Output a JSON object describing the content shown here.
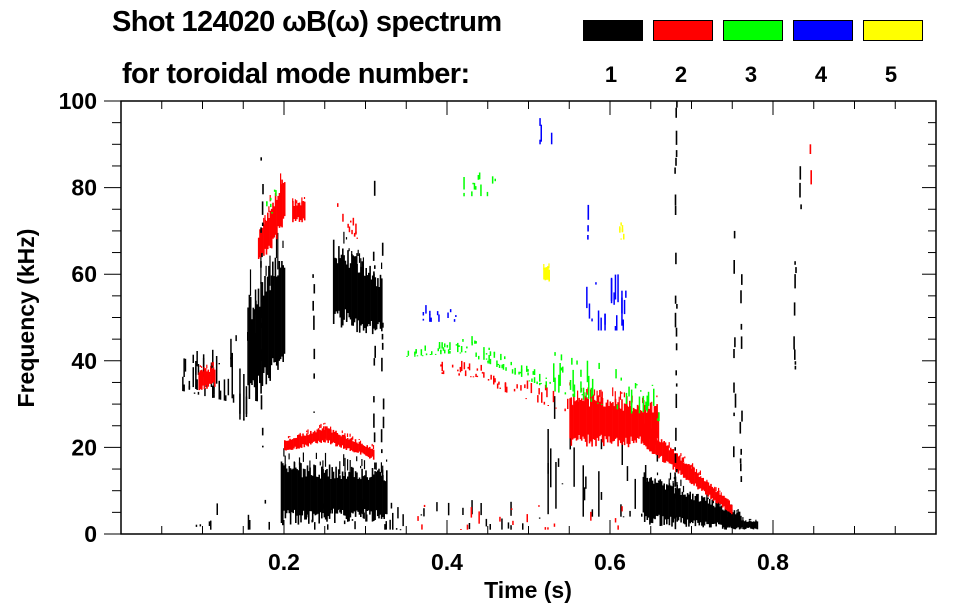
{
  "chart_data": {
    "type": "heatmap",
    "title_line1": "Shot 124020 ωB(ω) spectrum",
    "title_line2": "for toroidal mode number:",
    "xlabel": "Time (s)",
    "ylabel": "Frequency (kHz)",
    "xlim": [
      0,
      1.0
    ],
    "ylim": [
      0,
      100
    ],
    "xticks": [
      {
        "v": 0.2,
        "label": "0.2"
      },
      {
        "v": 0.4,
        "label": "0.4"
      },
      {
        "v": 0.6,
        "label": "0.6"
      },
      {
        "v": 0.8,
        "label": "0.8"
      }
    ],
    "yticks": [
      {
        "v": 0,
        "label": "0"
      },
      {
        "v": 20,
        "label": "20"
      },
      {
        "v": 40,
        "label": "40"
      },
      {
        "v": 60,
        "label": "60"
      },
      {
        "v": 80,
        "label": "80"
      },
      {
        "v": 100,
        "label": "100"
      }
    ],
    "legend": {
      "placement": "top-right",
      "entries": [
        {
          "mode": "1",
          "color": "#000000"
        },
        {
          "mode": "2",
          "color": "#ff0000"
        },
        {
          "mode": "3",
          "color": "#00ff00"
        },
        {
          "mode": "4",
          "color": "#0000ff"
        },
        {
          "mode": "5",
          "color": "#ffff00"
        }
      ]
    },
    "regions": [
      {
        "mode": 1,
        "t": [
          0.075,
          0.145
        ],
        "lo": [
          33,
          30
        ],
        "hi": [
          42,
          48
        ],
        "density": 0.7
      },
      {
        "mode": 1,
        "t": [
          0.145,
          0.165
        ],
        "lo": [
          25,
          30
        ],
        "hi": [
          50,
          58
        ],
        "density": 0.55
      },
      {
        "mode": 1,
        "t": [
          0.155,
          0.2
        ],
        "lo": [
          28,
          38
        ],
        "hi": [
          55,
          68
        ],
        "density": 0.85
      },
      {
        "mode": 1,
        "t": [
          0.26,
          0.32
        ],
        "lo": [
          48,
          45
        ],
        "hi": [
          68,
          60
        ],
        "density": 0.75
      },
      {
        "mode": 1,
        "t": [
          0.196,
          0.326
        ],
        "lo": [
          2,
          3
        ],
        "hi": [
          17,
          15
        ],
        "density": 0.95
      },
      {
        "mode": 1,
        "t": [
          0.52,
          0.66
        ],
        "lo": [
          4,
          4
        ],
        "hi": [
          34,
          25
        ],
        "density": 0.3
      },
      {
        "mode": 1,
        "t": [
          0.64,
          0.76
        ],
        "lo": [
          2,
          1
        ],
        "hi": [
          15,
          5
        ],
        "density": 0.85
      },
      {
        "mode": 1,
        "t": [
          0.74,
          0.78
        ],
        "lo": [
          1,
          1
        ],
        "hi": [
          4,
          3
        ],
        "density": 0.9
      },
      {
        "mode": 1,
        "t": [
          0.09,
          0.52
        ],
        "lo": [
          1,
          1
        ],
        "hi": [
          8,
          8
        ],
        "density": 0.12
      },
      {
        "mode": 2,
        "t": [
          0.095,
          0.115
        ],
        "lo": [
          33,
          34
        ],
        "hi": [
          38,
          39
        ],
        "density": 0.8
      },
      {
        "mode": 2,
        "t": [
          0.168,
          0.2
        ],
        "lo": [
          62,
          70
        ],
        "hi": [
          70,
          84
        ],
        "density": 0.75
      },
      {
        "mode": 2,
        "t": [
          0.21,
          0.225
        ],
        "lo": [
          72,
          72
        ],
        "hi": [
          77,
          77
        ],
        "density": 0.8
      },
      {
        "mode": 2,
        "t": [
          0.265,
          0.29
        ],
        "lo": [
          72,
          68
        ],
        "hi": [
          77,
          72
        ],
        "density": 0.6
      },
      {
        "mode": 2,
        "t": [
          0.2,
          0.25
        ],
        "lo": [
          19,
          21
        ],
        "hi": [
          22,
          25
        ],
        "density": 0.9
      },
      {
        "mode": 2,
        "t": [
          0.25,
          0.31
        ],
        "lo": [
          21,
          17
        ],
        "hi": [
          25,
          20
        ],
        "density": 0.8
      },
      {
        "mode": 2,
        "t": [
          0.39,
          0.45
        ],
        "lo": [
          37,
          36
        ],
        "hi": [
          41,
          39
        ],
        "density": 0.55
      },
      {
        "mode": 2,
        "t": [
          0.45,
          0.55
        ],
        "lo": [
          34,
          28
        ],
        "hi": [
          38,
          33
        ],
        "density": 0.35
      },
      {
        "mode": 2,
        "t": [
          0.55,
          0.66
        ],
        "lo": [
          20,
          20
        ],
        "hi": [
          33,
          30
        ],
        "density": 0.75
      },
      {
        "mode": 2,
        "t": [
          0.64,
          0.75
        ],
        "lo": [
          20,
          4
        ],
        "hi": [
          26,
          7
        ],
        "density": 0.8
      },
      {
        "mode": 2,
        "t": [
          0.33,
          0.62
        ],
        "lo": [
          1,
          1
        ],
        "hi": [
          7,
          7
        ],
        "density": 0.1
      },
      {
        "mode": 3,
        "t": [
          0.35,
          0.43
        ],
        "lo": [
          41,
          42
        ],
        "hi": [
          43,
          46
        ],
        "density": 0.7
      },
      {
        "mode": 3,
        "t": [
          0.43,
          0.53
        ],
        "lo": [
          41,
          33
        ],
        "hi": [
          45,
          36
        ],
        "density": 0.55
      },
      {
        "mode": 3,
        "t": [
          0.53,
          0.66
        ],
        "lo": [
          33,
          26
        ],
        "hi": [
          45,
          34
        ],
        "density": 0.35
      },
      {
        "mode": 3,
        "t": [
          0.42,
          0.46
        ],
        "lo": [
          78,
          78
        ],
        "hi": [
          84,
          84
        ],
        "density": 0.35
      },
      {
        "mode": 3,
        "t": [
          0.178,
          0.19
        ],
        "lo": [
          74,
          74
        ],
        "hi": [
          80,
          80
        ],
        "density": 0.6
      },
      {
        "mode": 4,
        "t": [
          0.37,
          0.41
        ],
        "lo": [
          49,
          49
        ],
        "hi": [
          53,
          53
        ],
        "density": 0.45
      },
      {
        "mode": 4,
        "t": [
          0.55,
          0.62
        ],
        "lo": [
          47,
          47
        ],
        "hi": [
          60,
          60
        ],
        "density": 0.25
      },
      {
        "mode": 4,
        "t": [
          0.51,
          0.53
        ],
        "lo": [
          90,
          90
        ],
        "hi": [
          98,
          98
        ],
        "density": 0.5
      },
      {
        "mode": 5,
        "t": [
          0.518,
          0.525
        ],
        "lo": [
          58,
          58
        ],
        "hi": [
          62,
          62
        ],
        "density": 0.8
      },
      {
        "mode": 5,
        "t": [
          0.608,
          0.616
        ],
        "lo": [
          68,
          68
        ],
        "hi": [
          72,
          72
        ],
        "density": 0.7
      }
    ],
    "streaks": [
      {
        "mode": 1,
        "t": 0.172,
        "f": [
          20,
          87
        ]
      },
      {
        "mode": 1,
        "t": 0.235,
        "f": [
          28,
          60
        ]
      },
      {
        "mode": 1,
        "t": 0.31,
        "f": [
          5,
          85
        ]
      },
      {
        "mode": 1,
        "t": 0.32,
        "f": [
          10,
          70
        ]
      },
      {
        "mode": 1,
        "t": 0.68,
        "f": [
          0,
          100
        ]
      },
      {
        "mode": 1,
        "t": 0.752,
        "f": [
          15,
          70
        ]
      },
      {
        "mode": 1,
        "t": 0.76,
        "f": [
          12,
          60
        ]
      },
      {
        "mode": 1,
        "t": 0.826,
        "f": [
          38,
          63
        ]
      },
      {
        "mode": 1,
        "t": 0.833,
        "f": [
          75,
          88
        ]
      },
      {
        "mode": 2,
        "t": 0.845,
        "f": [
          80,
          90
        ]
      },
      {
        "mode": 4,
        "t": 0.572,
        "f": [
          68,
          76
        ]
      }
    ]
  }
}
